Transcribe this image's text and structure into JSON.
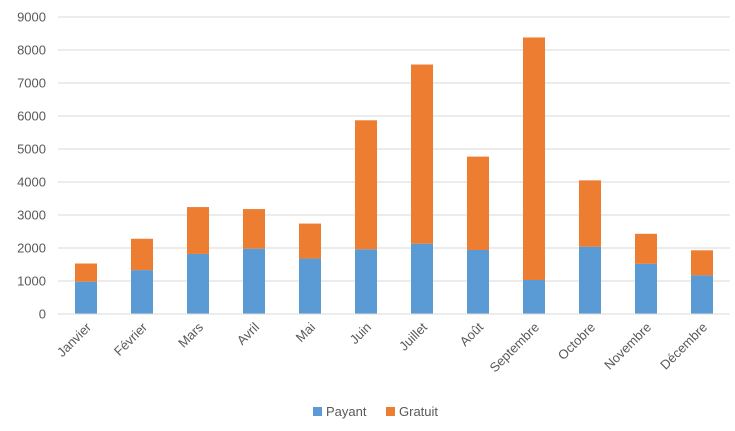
{
  "chart_data": {
    "type": "bar",
    "stacked": true,
    "categories": [
      "Janvier",
      "Février",
      "Mars",
      "Avril",
      "Mai",
      "Juin",
      "Juillet",
      "Août",
      "Septembre",
      "Octobre",
      "Novembre",
      "Décembre"
    ],
    "series": [
      {
        "name": "Payant",
        "color": "#5b9bd5",
        "values": [
          980,
          1330,
          1820,
          1980,
          1680,
          1960,
          2130,
          1940,
          1030,
          2040,
          1520,
          1170
        ]
      },
      {
        "name": "Gratuit",
        "color": "#ed7d31",
        "values": [
          550,
          950,
          1420,
          1200,
          1060,
          3910,
          5430,
          2830,
          7350,
          2010,
          910,
          760
        ]
      }
    ],
    "ylim": [
      0,
      9000
    ],
    "yticks": [
      "0",
      "1000",
      "2000",
      "3000",
      "4000",
      "5000",
      "6000",
      "7000",
      "8000",
      "9000"
    ],
    "grid": true,
    "legend_position": "bottom"
  }
}
